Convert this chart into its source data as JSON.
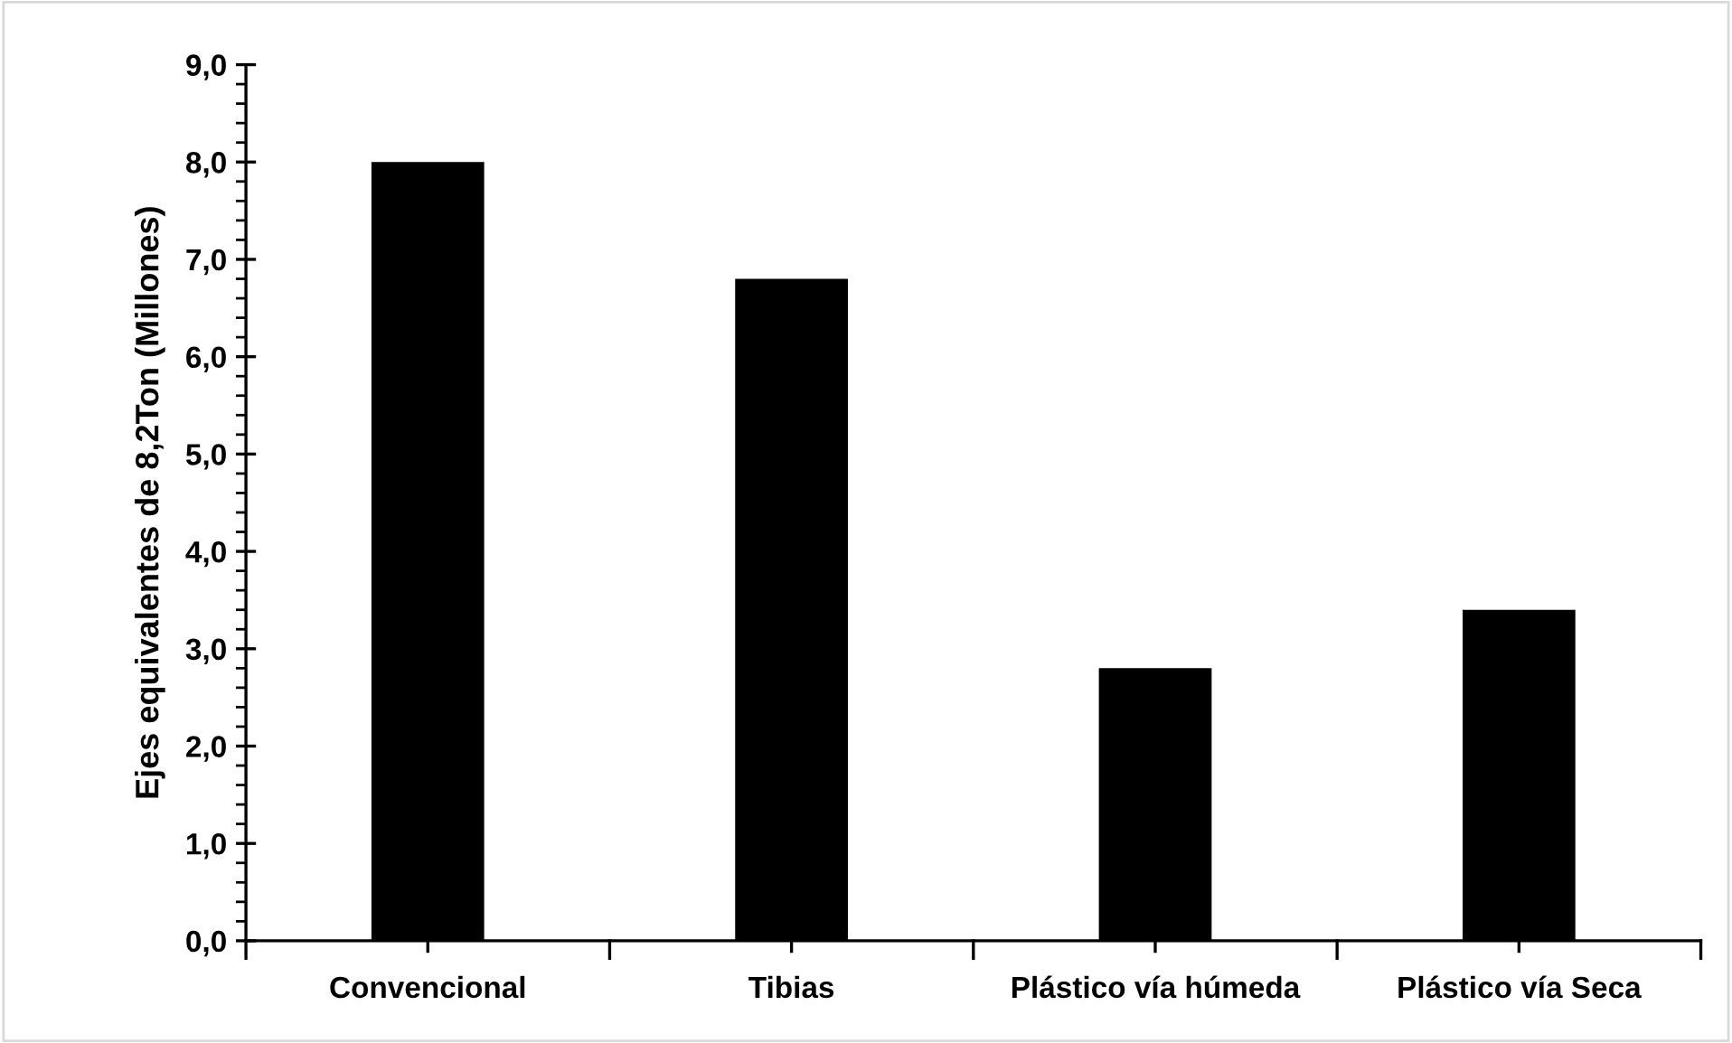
{
  "chart_data": {
    "type": "bar",
    "ylabel": "Ejes equivalentes de 8,2Ton (Millones)",
    "categories": [
      "Convencional",
      "Tibias",
      "Plástico vía húmeda",
      "Plástico vía Seca"
    ],
    "values": [
      8.0,
      6.8,
      2.8,
      3.4
    ],
    "color": "#000000",
    "ylim": [
      0,
      9
    ],
    "yticks": [
      {
        "value": 0,
        "label": "0,0"
      },
      {
        "value": 0.2,
        "label": null
      },
      {
        "value": 0.4,
        "label": null
      },
      {
        "value": 0.6,
        "label": null
      },
      {
        "value": 0.8,
        "label": null
      },
      {
        "value": 1,
        "label": "1,0"
      },
      {
        "value": 1.2,
        "label": null
      },
      {
        "value": 1.4,
        "label": null
      },
      {
        "value": 1.6,
        "label": null
      },
      {
        "value": 1.8,
        "label": null
      },
      {
        "value": 2,
        "label": "2,0"
      },
      {
        "value": 2.2,
        "label": null
      },
      {
        "value": 2.4,
        "label": null
      },
      {
        "value": 2.6,
        "label": null
      },
      {
        "value": 2.8,
        "label": null
      },
      {
        "value": 3,
        "label": "3,0"
      },
      {
        "value": 3.2,
        "label": null
      },
      {
        "value": 3.4,
        "label": null
      },
      {
        "value": 3.6,
        "label": null
      },
      {
        "value": 3.8,
        "label": null
      },
      {
        "value": 4,
        "label": "4,0"
      },
      {
        "value": 4.2,
        "label": null
      },
      {
        "value": 4.4,
        "label": null
      },
      {
        "value": 4.6,
        "label": null
      },
      {
        "value": 4.8,
        "label": null
      },
      {
        "value": 5,
        "label": "5,0"
      },
      {
        "value": 5.2,
        "label": null
      },
      {
        "value": 5.4,
        "label": null
      },
      {
        "value": 5.6,
        "label": null
      },
      {
        "value": 5.8,
        "label": null
      },
      {
        "value": 6,
        "label": "6,0"
      },
      {
        "value": 6.2,
        "label": null
      },
      {
        "value": 6.4,
        "label": null
      },
      {
        "value": 6.6,
        "label": null
      },
      {
        "value": 6.8,
        "label": null
      },
      {
        "value": 7,
        "label": "7,0"
      },
      {
        "value": 7.2,
        "label": null
      },
      {
        "value": 7.4,
        "label": null
      },
      {
        "value": 7.6,
        "label": null
      },
      {
        "value": 7.8,
        "label": null
      },
      {
        "value": 8,
        "label": "8,0"
      },
      {
        "value": 8.2,
        "label": null
      },
      {
        "value": 8.4,
        "label": null
      },
      {
        "value": 8.6,
        "label": null
      },
      {
        "value": 8.8,
        "label": null
      },
      {
        "value": 9,
        "label": "9,0"
      }
    ],
    "grid": false
  }
}
